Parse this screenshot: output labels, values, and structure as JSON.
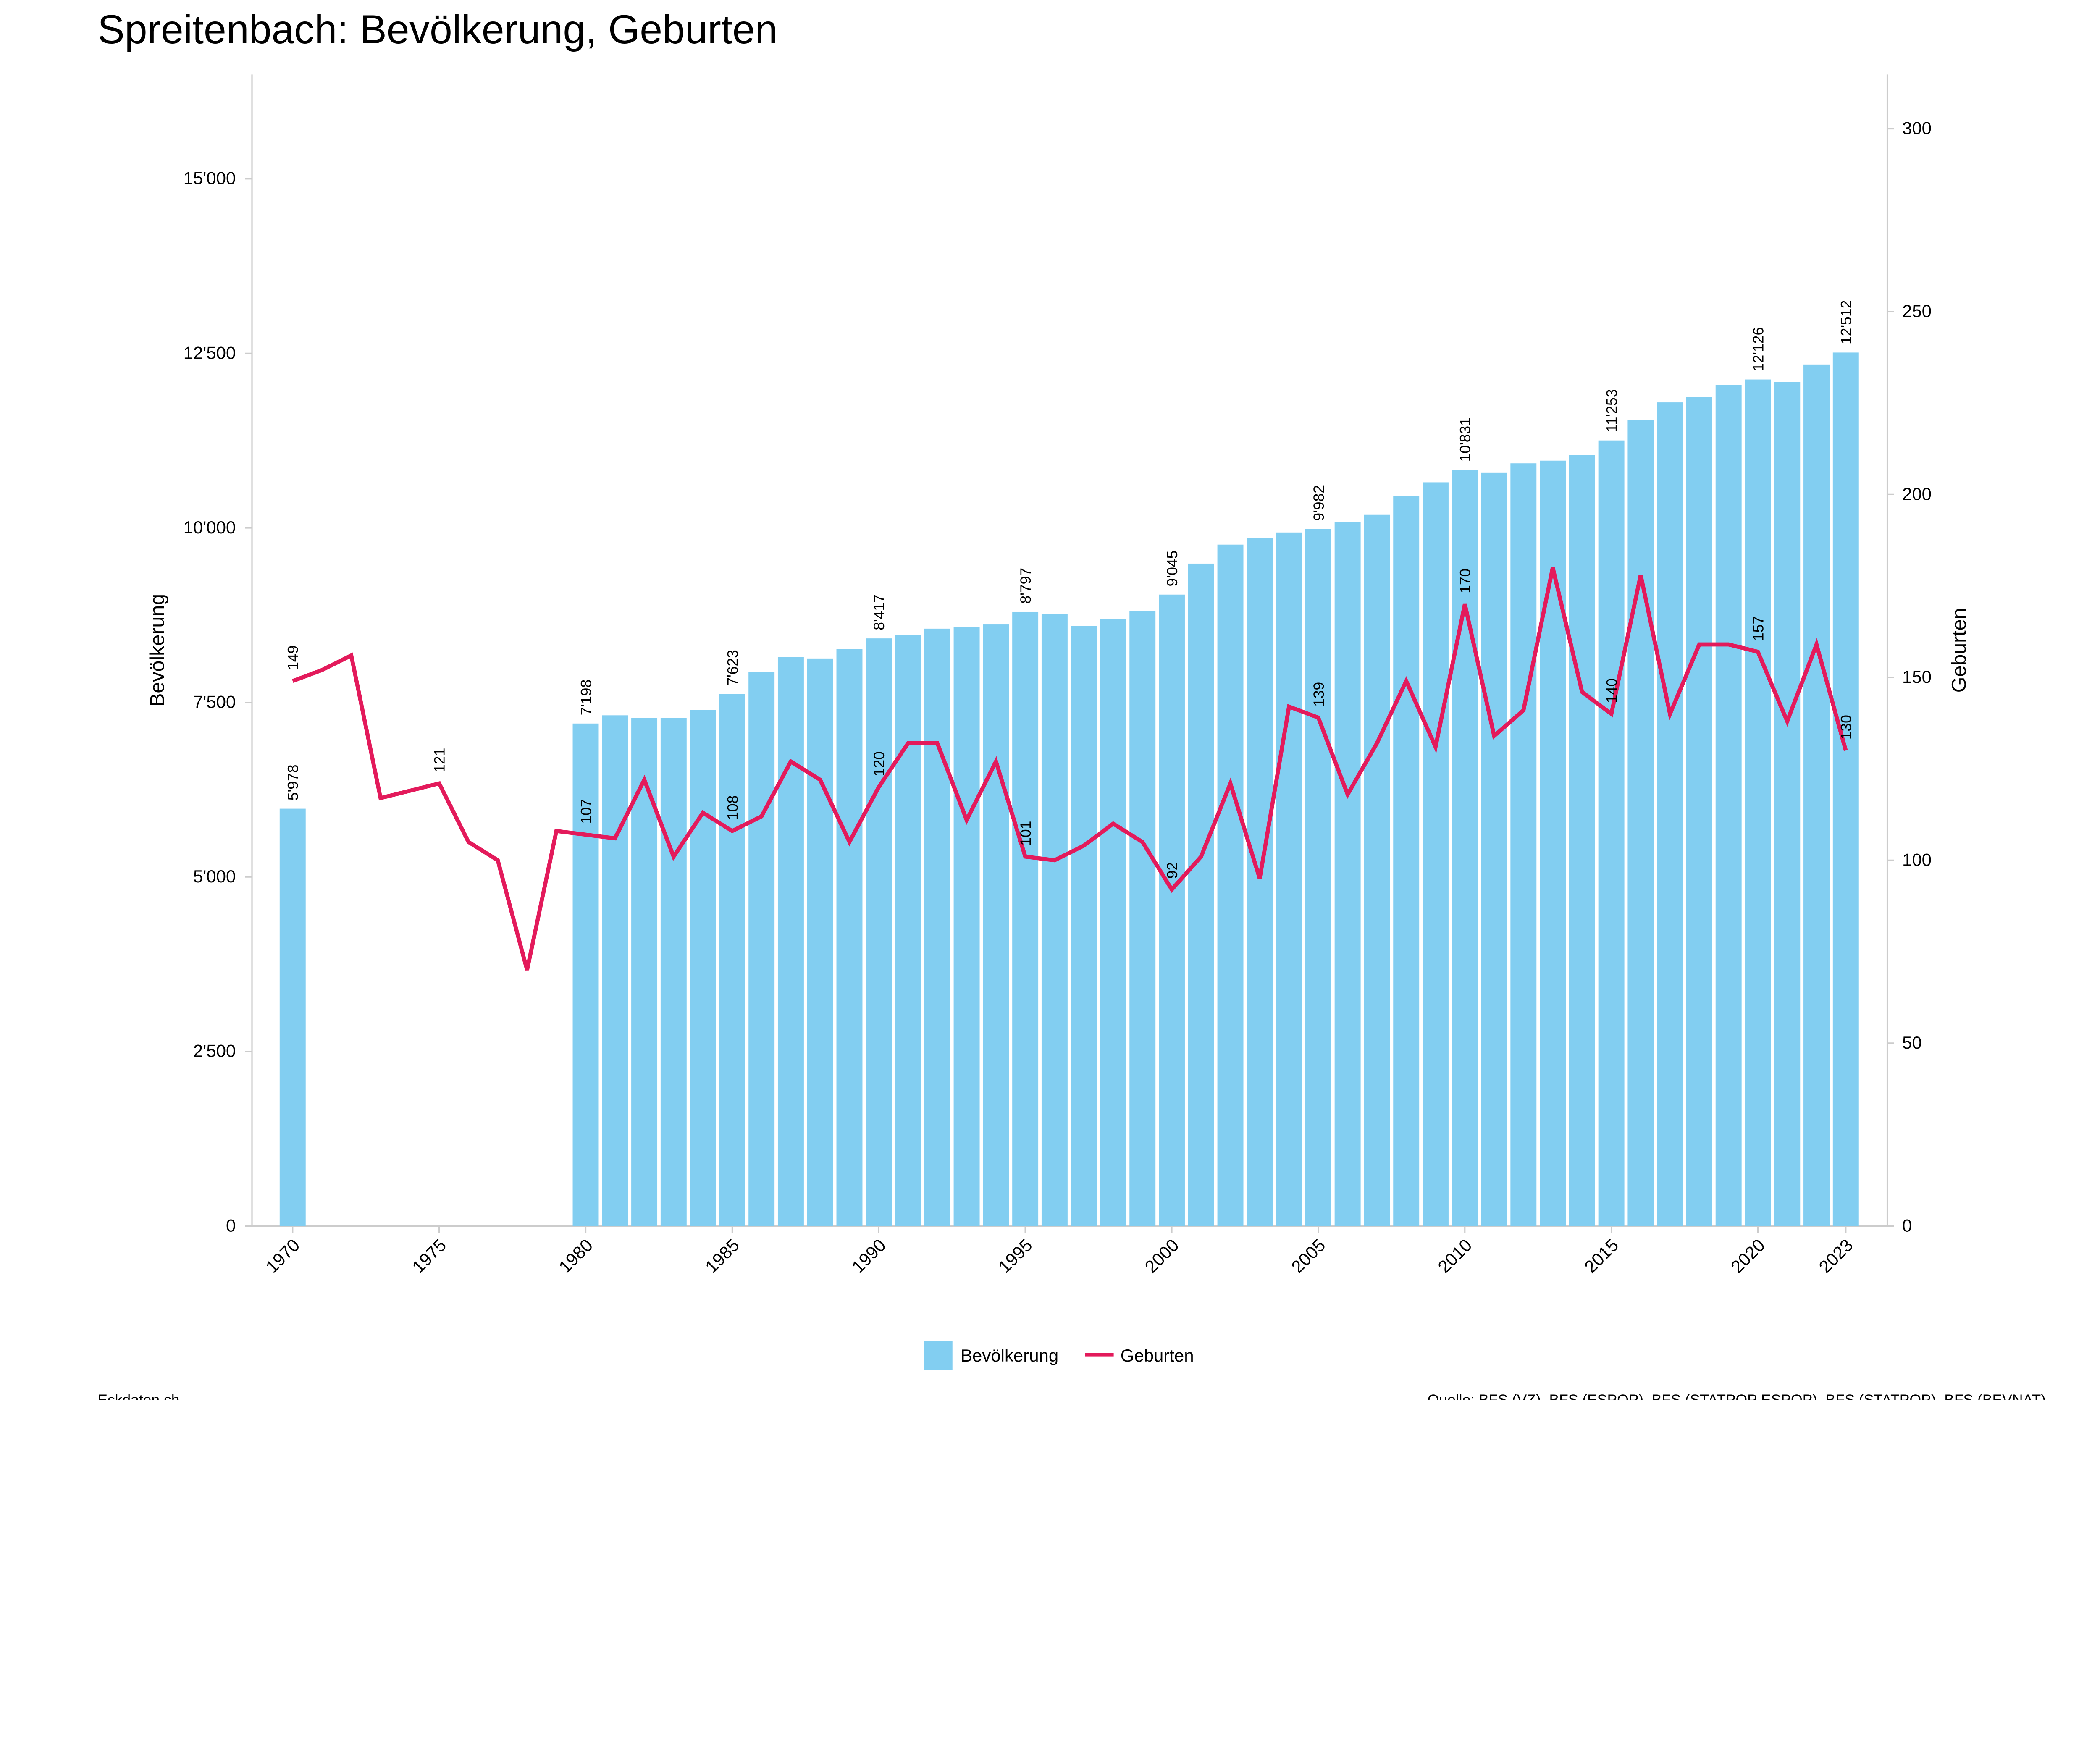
{
  "chart_data": {
    "type": "bar+line",
    "title": "Spreitenbach: Bevölkerung, Geburten",
    "ylabel_left": "Bevölkerung",
    "ylabel_right": "Geburten",
    "ylim_left": [
      0,
      16500
    ],
    "ylim_right": [
      0,
      315
    ],
    "yticks_left": [
      "0",
      "2'500",
      "5'000",
      "7'500",
      "10'000",
      "12'500",
      "15'000"
    ],
    "yticks_left_values": [
      0,
      2500,
      5000,
      7500,
      10000,
      12500,
      15000
    ],
    "yticks_right": [
      "0",
      "50",
      "100",
      "150",
      "200",
      "250",
      "300"
    ],
    "yticks_right_values": [
      0,
      50,
      100,
      150,
      200,
      250,
      300
    ],
    "xticks": [
      "1970",
      "1975",
      "1980",
      "1985",
      "1990",
      "1995",
      "2000",
      "2005",
      "2010",
      "2015",
      "2020",
      "2023"
    ],
    "legend": [
      "Bevölkerung",
      "Geburten"
    ],
    "legend_position": "bottom-center",
    "colors": {
      "bars": "#82cef1",
      "line": "#e31a5b"
    },
    "population": {
      "name": "Bevölkerung",
      "years": [
        1970,
        1980,
        1981,
        1982,
        1983,
        1984,
        1985,
        1986,
        1987,
        1988,
        1989,
        1990,
        1991,
        1992,
        1993,
        1994,
        1995,
        1996,
        1997,
        1998,
        1999,
        2000,
        2001,
        2002,
        2003,
        2004,
        2005,
        2006,
        2007,
        2008,
        2009,
        2010,
        2011,
        2012,
        2013,
        2014,
        2015,
        2016,
        2017,
        2018,
        2019,
        2020,
        2021,
        2022,
        2023
      ],
      "values": [
        5978,
        7198,
        7315,
        7277,
        7277,
        7393,
        7623,
        7937,
        8150,
        8130,
        8267,
        8417,
        8460,
        8557,
        8577,
        8616,
        8797,
        8771,
        8596,
        8693,
        8810,
        9045,
        9489,
        9761,
        9858,
        9935,
        9982,
        10090,
        10188,
        10459,
        10653,
        10831,
        10789,
        10925,
        10964,
        11042,
        11253,
        11546,
        11798,
        11876,
        12050,
        12126,
        12089,
        12341,
        12512
      ],
      "labels": {
        "1970": "5'978",
        "1980": "7'198",
        "1985": "7'623",
        "1990": "8'417",
        "1995": "8'797",
        "2000": "9'045",
        "2005": "9'982",
        "2010": "10'831",
        "2015": "11'253",
        "2020": "12'126",
        "2023": "12'512"
      }
    },
    "births": {
      "name": "Geburten",
      "years": [
        1970,
        1971,
        1972,
        1973,
        1974,
        1975,
        1976,
        1977,
        1978,
        1979,
        1980,
        1981,
        1982,
        1983,
        1984,
        1985,
        1986,
        1987,
        1988,
        1989,
        1990,
        1991,
        1992,
        1993,
        1994,
        1995,
        1996,
        1997,
        1998,
        1999,
        2000,
        2001,
        2002,
        2003,
        2004,
        2005,
        2006,
        2007,
        2008,
        2009,
        2010,
        2011,
        2012,
        2013,
        2014,
        2015,
        2016,
        2017,
        2018,
        2019,
        2020,
        2021,
        2022,
        2023
      ],
      "values": [
        149,
        152,
        156,
        117,
        119,
        121,
        105,
        100,
        70,
        108,
        107,
        106,
        122,
        101,
        113,
        108,
        112,
        127,
        122,
        105,
        120,
        132,
        132,
        111,
        127,
        101,
        100,
        104,
        110,
        105,
        92,
        101,
        121,
        95,
        142,
        139,
        118,
        132,
        149,
        131,
        170,
        134,
        141,
        180,
        146,
        140,
        178,
        140,
        159,
        159,
        157,
        138,
        159,
        130
      ],
      "labels": {
        "1970": "149",
        "1975": "121",
        "1980": "107",
        "1985": "108",
        "1990": "120",
        "1995": "101",
        "2000": "92",
        "2005": "139",
        "2010": "170",
        "2015": "140",
        "2020": "157",
        "2023": "130"
      }
    }
  },
  "footer": {
    "brand": "Eckdaten.ch",
    "source": "Quelle: BFS (VZ), BFS (ESPOP), BFS (STATPOP ESPOP), BFS (STATPOP), BFS (BEVNAT)"
  }
}
